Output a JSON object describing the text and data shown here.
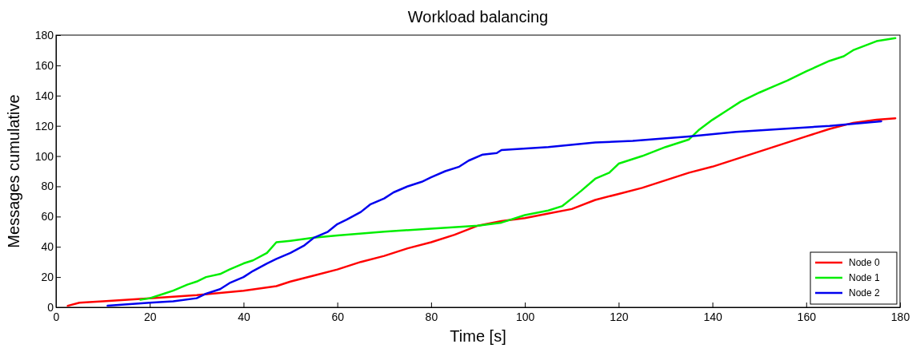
{
  "chart_data": {
    "type": "line",
    "title": "Workload balancing",
    "xlabel": "Time [s]",
    "ylabel": "Messages cumulative",
    "xlim": [
      0,
      180
    ],
    "ylim": [
      0,
      180
    ],
    "xticks": [
      0,
      20,
      40,
      60,
      80,
      100,
      120,
      140,
      160,
      180
    ],
    "yticks": [
      0,
      20,
      40,
      60,
      80,
      100,
      120,
      140,
      160,
      180
    ],
    "legend": "bottom right",
    "line_style": "solid",
    "series": [
      {
        "name": "Node 0",
        "color": "#ff0000",
        "x": [
          2.5,
          5,
          10,
          20,
          30,
          40,
          47,
          50,
          55,
          60,
          65,
          70,
          75,
          80,
          85,
          90,
          95,
          100,
          105,
          110,
          115,
          120,
          125,
          130,
          135,
          140,
          145,
          150,
          155,
          160,
          165,
          170,
          175,
          179
        ],
        "values": [
          1,
          3,
          4,
          6,
          8,
          11,
          14,
          17,
          21,
          25,
          30,
          34,
          39,
          43,
          48,
          54,
          57,
          59,
          62,
          65,
          71,
          75,
          79,
          84,
          89,
          93,
          98,
          103,
          108,
          113,
          118,
          122,
          124,
          125
        ]
      },
      {
        "name": "Node 1",
        "color": "#00ee00",
        "x": [
          18,
          20,
          23,
          25,
          28,
          30,
          32,
          35,
          37,
          40,
          42,
          45,
          47,
          50,
          55,
          60,
          70,
          80,
          90,
          95,
          100,
          105,
          108,
          110,
          112,
          115,
          118,
          120,
          125,
          130,
          135,
          137,
          140,
          143,
          146,
          150,
          153,
          156,
          160,
          165,
          168,
          170,
          175,
          179
        ],
        "values": [
          5,
          6,
          9,
          11,
          15,
          17,
          20,
          22,
          25,
          29,
          31,
          36,
          43,
          44,
          46,
          47.5,
          50,
          52,
          54,
          56,
          61,
          64,
          67,
          72,
          77,
          85,
          89,
          95,
          100,
          106,
          111,
          117,
          124,
          130,
          136,
          142,
          146,
          150,
          156,
          163,
          166,
          170,
          176,
          178
        ]
      },
      {
        "name": "Node 2",
        "color": "#0000ee",
        "x": [
          11,
          20,
          25,
          30,
          32,
          35,
          37,
          40,
          42,
          45,
          47,
          50,
          53,
          55,
          58,
          60,
          62,
          65,
          67,
          70,
          72,
          75,
          78,
          80,
          83,
          86,
          88,
          91,
          94,
          95,
          105,
          115,
          123,
          135,
          145,
          155,
          165,
          176
        ],
        "values": [
          1,
          3,
          4,
          6,
          9,
          12,
          16,
          20,
          24,
          29,
          32,
          36,
          41,
          46,
          50,
          55,
          58,
          63,
          68,
          72,
          76,
          80,
          83,
          86,
          90,
          93,
          97,
          101,
          102,
          104,
          106,
          109,
          110,
          113,
          116,
          118,
          120,
          123
        ]
      }
    ]
  }
}
